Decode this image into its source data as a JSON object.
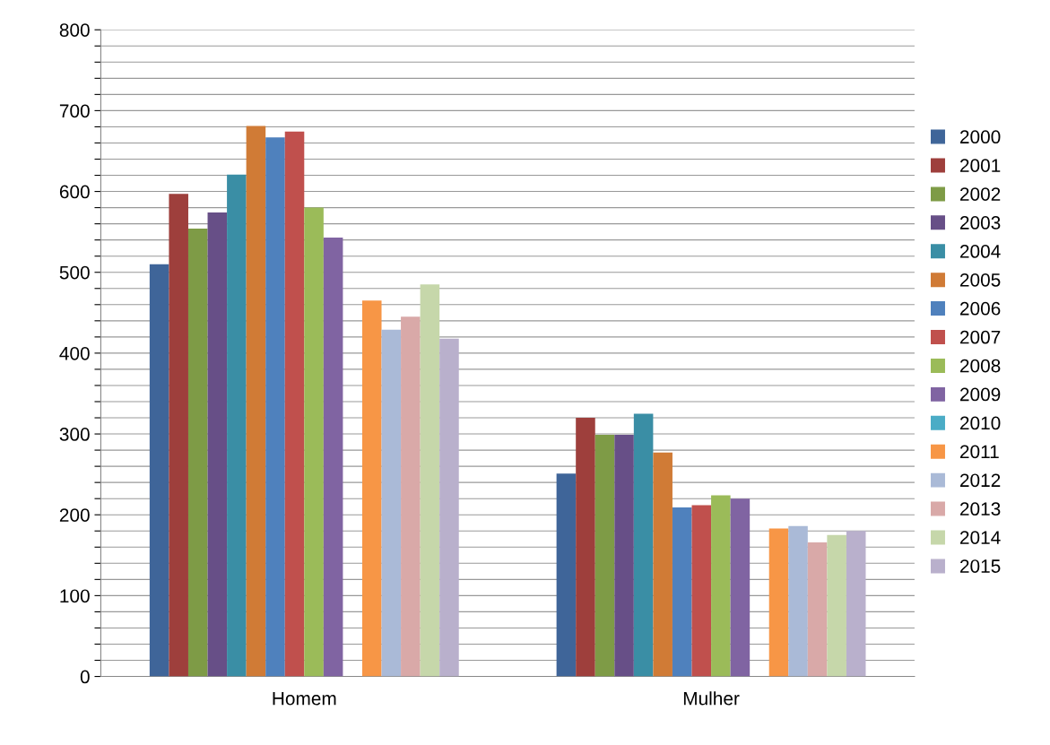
{
  "chart_data": {
    "type": "bar",
    "categories": [
      "Homem",
      "Mulher"
    ],
    "series": [
      {
        "name": "2000",
        "color": "#3f6599",
        "values": [
          510,
          251
        ]
      },
      {
        "name": "2001",
        "color": "#9e3f3c",
        "values": [
          597,
          320
        ]
      },
      {
        "name": "2002",
        "color": "#7e9b46",
        "values": [
          554,
          299
        ]
      },
      {
        "name": "2003",
        "color": "#674f87",
        "values": [
          574,
          299
        ]
      },
      {
        "name": "2004",
        "color": "#3a8ea5",
        "values": [
          621,
          325
        ]
      },
      {
        "name": "2005",
        "color": "#d07b36",
        "values": [
          681,
          277
        ]
      },
      {
        "name": "2006",
        "color": "#4f81bd",
        "values": [
          667,
          209
        ]
      },
      {
        "name": "2007",
        "color": "#c0504d",
        "values": [
          674,
          212
        ]
      },
      {
        "name": "2008",
        "color": "#9bbb59",
        "values": [
          580,
          224
        ]
      },
      {
        "name": "2009",
        "color": "#8064a2",
        "values": [
          543,
          220
        ]
      },
      {
        "name": "2010",
        "color": "#4bacc6",
        "values": [
          null,
          null
        ]
      },
      {
        "name": "2011",
        "color": "#f79646",
        "values": [
          465,
          183
        ]
      },
      {
        "name": "2012",
        "color": "#aabad7",
        "values": [
          429,
          186
        ]
      },
      {
        "name": "2013",
        "color": "#d9a9a8",
        "values": [
          445,
          166
        ]
      },
      {
        "name": "2014",
        "color": "#c6d7aa",
        "values": [
          485,
          175
        ]
      },
      {
        "name": "2015",
        "color": "#b9b0cc",
        "values": [
          418,
          180
        ]
      }
    ],
    "ylim": [
      0,
      800
    ],
    "yticks": [
      0,
      {
        "value": 20,
        "label": null
      },
      {
        "value": 40,
        "label": null
      },
      {
        "value": 60,
        "label": null
      },
      {
        "value": 80,
        "label": null
      },
      100,
      {
        "value": 120,
        "label": null
      },
      {
        "value": 140,
        "label": null
      },
      {
        "value": 160,
        "label": null
      },
      {
        "value": 180,
        "label": null
      },
      200,
      {
        "value": 220,
        "label": null
      },
      {
        "value": 240,
        "label": null
      },
      {
        "value": 260,
        "label": null
      },
      {
        "value": 280,
        "label": null
      },
      300,
      {
        "value": 320,
        "label": null
      },
      {
        "value": 340,
        "label": null
      },
      {
        "value": 360,
        "label": null
      },
      {
        "value": 380,
        "label": null
      },
      400,
      {
        "value": 420,
        "label": null
      },
      {
        "value": 440,
        "label": null
      },
      {
        "value": 460,
        "label": null
      },
      {
        "value": 480,
        "label": null
      },
      500,
      {
        "value": 520,
        "label": null
      },
      {
        "value": 540,
        "label": null
      },
      {
        "value": 560,
        "label": null
      },
      {
        "value": 580,
        "label": null
      },
      600,
      {
        "value": 620,
        "label": null
      },
      {
        "value": 640,
        "label": null
      },
      {
        "value": 660,
        "label": null
      },
      {
        "value": 680,
        "label": null
      },
      700,
      {
        "value": 720,
        "label": null
      },
      {
        "value": 740,
        "label": null
      },
      {
        "value": 760,
        "label": null
      },
      {
        "value": 780,
        "label": null
      },
      800
    ],
    "grid": "y",
    "legend": "right"
  }
}
